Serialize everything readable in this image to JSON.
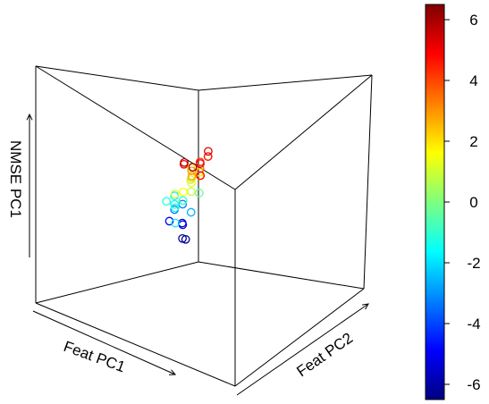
{
  "chart_data": {
    "type": "scatter",
    "projection": "3d-box",
    "title": "",
    "xlabel": "Feat PC1",
    "ylabel": "Feat PC2",
    "zlabel": "NMSE PC1",
    "color_scale": {
      "name": "jet",
      "range": [
        -6.5,
        6.5
      ],
      "ticks": [
        6,
        4,
        2,
        0,
        -2,
        -4,
        -6
      ],
      "tick_labels": [
        "6",
        "4",
        "2",
        "0",
        "-2",
        "-4",
        "-6"
      ],
      "placement": "right"
    },
    "points": [
      {
        "x": 0.2,
        "y": 0.1,
        "z": 0.2,
        "color_value": -6.2
      },
      {
        "x": 0.18,
        "y": 0.1,
        "z": 0.19,
        "color_value": -6.3
      },
      {
        "x": 0.15,
        "y": 0.05,
        "z": 0.27,
        "color_value": -5.8
      },
      {
        "x": 0.3,
        "y": 0.2,
        "z": 0.32,
        "color_value": -5.0
      },
      {
        "x": 0.28,
        "y": 0.1,
        "z": 0.32,
        "color_value": -5.2
      },
      {
        "x": 0.3,
        "y": 0.15,
        "z": 0.4,
        "color_value": -3.5
      },
      {
        "x": 0.25,
        "y": 0.15,
        "z": 0.42,
        "color_value": -3.2
      },
      {
        "x": 0.3,
        "y": 0.25,
        "z": 0.4,
        "color_value": -2.6
      },
      {
        "x": 0.35,
        "y": 0.2,
        "z": 0.45,
        "color_value": -2.1
      },
      {
        "x": 0.3,
        "y": 0.15,
        "z": 0.48,
        "color_value": -1.8
      },
      {
        "x": 0.35,
        "y": 0.25,
        "z": 0.48,
        "color_value": -1.5
      },
      {
        "x": 0.4,
        "y": 0.2,
        "z": 0.48,
        "color_value": -1.2
      },
      {
        "x": 0.45,
        "y": 0.3,
        "z": 0.49,
        "color_value": -1.0
      },
      {
        "x": 0.4,
        "y": 0.3,
        "z": 0.5,
        "color_value": -0.8
      },
      {
        "x": 0.5,
        "y": 0.35,
        "z": 0.49,
        "color_value": -1.4
      },
      {
        "x": 0.65,
        "y": 0.5,
        "z": 0.46,
        "color_value": -1.8
      },
      {
        "x": 0.3,
        "y": 0.3,
        "z": 0.52,
        "color_value": -0.3
      },
      {
        "x": 0.2,
        "y": 0.15,
        "z": 0.55,
        "color_value": 0.6
      },
      {
        "x": 0.4,
        "y": 0.35,
        "z": 0.56,
        "color_value": 0.9
      },
      {
        "x": 0.5,
        "y": 0.35,
        "z": 0.57,
        "color_value": 1.1
      },
      {
        "x": 0.45,
        "y": 0.4,
        "z": 0.63,
        "color_value": 1.3
      },
      {
        "x": 0.55,
        "y": 0.45,
        "z": 0.61,
        "color_value": 1.6
      },
      {
        "x": 0.4,
        "y": 0.4,
        "z": 0.68,
        "color_value": 2.0
      },
      {
        "x": 0.35,
        "y": 0.3,
        "z": 0.68,
        "color_value": 2.1
      },
      {
        "x": 0.5,
        "y": 0.45,
        "z": 0.68,
        "color_value": 2.2
      },
      {
        "x": 0.5,
        "y": 0.5,
        "z": 0.7,
        "color_value": 2.5
      },
      {
        "x": 0.6,
        "y": 0.55,
        "z": 0.73,
        "color_value": 2.8
      },
      {
        "x": 0.55,
        "y": 0.5,
        "z": 0.74,
        "color_value": 3.0
      },
      {
        "x": 0.6,
        "y": 0.6,
        "z": 0.78,
        "color_value": 3.6
      },
      {
        "x": 0.45,
        "y": 0.5,
        "z": 0.8,
        "color_value": 4.2
      },
      {
        "x": 0.5,
        "y": 0.55,
        "z": 0.82,
        "color_value": 4.5
      },
      {
        "x": 0.6,
        "y": 0.6,
        "z": 0.82,
        "color_value": 4.3
      },
      {
        "x": 0.75,
        "y": 0.75,
        "z": 0.8,
        "color_value": 4.7
      },
      {
        "x": 0.7,
        "y": 0.7,
        "z": 0.85,
        "color_value": 5.0
      },
      {
        "x": 0.75,
        "y": 0.65,
        "z": 0.85,
        "color_value": 5.1
      },
      {
        "x": 0.55,
        "y": 0.6,
        "z": 0.87,
        "color_value": 5.4
      },
      {
        "x": 0.85,
        "y": 0.75,
        "z": 0.9,
        "color_value": 5.8
      },
      {
        "x": 0.95,
        "y": 0.9,
        "z": 0.92,
        "color_value": 6.2
      }
    ],
    "grid": false,
    "legend": "colorbar-right"
  }
}
